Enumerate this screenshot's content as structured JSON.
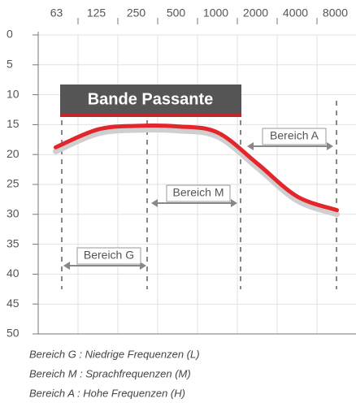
{
  "chart_data": {
    "type": "line",
    "categories": [
      63,
      125,
      250,
      500,
      1000,
      2000,
      4000,
      8000
    ],
    "series": [
      {
        "color": "#e3262c",
        "values": [
          18.8,
          15.8,
          15.2,
          15.3,
          16.3,
          21.5,
          27,
          29.3
        ]
      }
    ],
    "ylim": [
      0,
      50
    ],
    "yticks": [
      0,
      5,
      10,
      15,
      20,
      25,
      30,
      35,
      40,
      45,
      50
    ],
    "inverted_y": true,
    "grid": true,
    "banner": "Bande Passante",
    "ranges": [
      "Bereich G",
      "Bereich M",
      "Bereich A"
    ],
    "notes": [
      "Bereich G : Niedrige Frequenzen (L)",
      "Bereich M : Sprachfrequenzen (M)",
      "Bereich A : Hohe Frequenzen (H)"
    ]
  }
}
